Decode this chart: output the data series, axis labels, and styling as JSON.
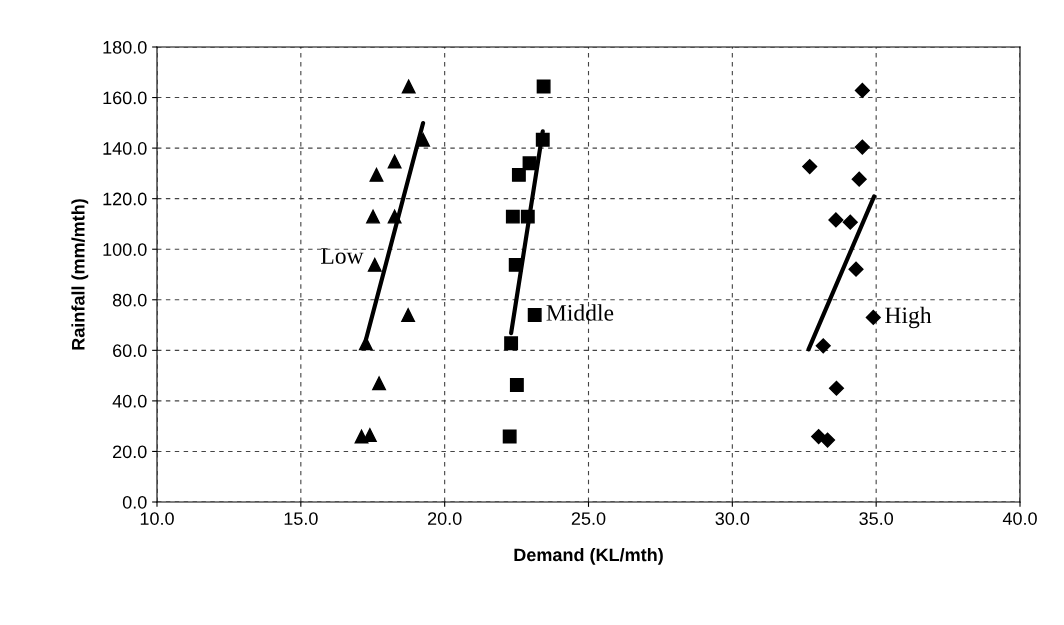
{
  "chart_data": {
    "type": "scatter",
    "xlabel": "Demand (KL/mth)",
    "ylabel": "Rainfall (mm/mth)",
    "xlim": [
      10,
      40
    ],
    "ylim": [
      0,
      180
    ],
    "xticks": [
      {
        "value": 10,
        "label": "10.0"
      },
      {
        "value": 15,
        "label": "15.0"
      },
      {
        "value": 20,
        "label": "20.0"
      },
      {
        "value": 25,
        "label": "25.0"
      },
      {
        "value": 30,
        "label": "30.0"
      },
      {
        "value": 35,
        "label": "35.0"
      },
      {
        "value": 40,
        "label": "40.0"
      }
    ],
    "yticks": [
      {
        "value": 0,
        "label": "0.0"
      },
      {
        "value": 20,
        "label": "20.0"
      },
      {
        "value": 40,
        "label": "40.0"
      },
      {
        "value": 60,
        "label": "60.0"
      },
      {
        "value": 80,
        "label": "80.0"
      },
      {
        "value": 100,
        "label": "100.0"
      },
      {
        "value": 120,
        "label": "120.0"
      },
      {
        "value": 140,
        "label": "140.0"
      },
      {
        "value": 160,
        "label": "160.0"
      },
      {
        "value": 180,
        "label": "180.0"
      }
    ],
    "grid": true,
    "legend": false,
    "series": [
      {
        "marker": "triangle",
        "color": "#000000",
        "x": [
          18.75,
          19.25,
          18.26,
          17.63,
          18.26,
          17.51,
          17.57,
          18.73,
          17.26,
          17.72,
          17.11,
          17.4
        ],
        "values": [
          164.4,
          143.3,
          134.7,
          129.4,
          112.9,
          112.9,
          93.8,
          74.0,
          62.8,
          47.0,
          25.9,
          26.5
        ]
      },
      {
        "marker": "square",
        "color": "#000000",
        "x": [
          23.44,
          23.41,
          22.95,
          22.58,
          22.89,
          22.37,
          22.47,
          23.13,
          22.31,
          22.51,
          22.26
        ],
        "values": [
          164.4,
          143.3,
          134.0,
          129.4,
          112.9,
          112.9,
          93.8,
          74.0,
          62.8,
          46.3,
          25.9
        ]
      },
      {
        "marker": "diamond",
        "color": "#000000",
        "x": [
          34.52,
          34.52,
          32.69,
          34.41,
          33.6,
          34.1,
          34.3,
          34.9,
          33.16,
          33.62,
          33.0,
          33.31
        ],
        "values": [
          162.8,
          140.4,
          132.7,
          127.7,
          111.6,
          110.7,
          92.1,
          73.0,
          61.8,
          45.0,
          25.9,
          24.5
        ]
      },
      {
        "type": "line",
        "marker": "none",
        "color": "#000000",
        "x": [
          17.26,
          19.25
        ],
        "values": [
          64.1,
          149.9
        ]
      },
      {
        "type": "line",
        "marker": "none",
        "color": "#000000",
        "x": [
          22.31,
          23.41
        ],
        "values": [
          66.8,
          146.6
        ]
      },
      {
        "type": "line",
        "marker": "none",
        "color": "#000000",
        "x": [
          32.65,
          34.93
        ],
        "values": [
          60.4,
          120.9
        ]
      }
    ],
    "annotations": [
      {
        "text": "Low",
        "x": 17.57,
        "y": 93.8
      },
      {
        "text": "Middle",
        "x": 23.13,
        "y": 74.0
      },
      {
        "text": "High",
        "x": 34.9,
        "y": 73.0
      }
    ]
  }
}
